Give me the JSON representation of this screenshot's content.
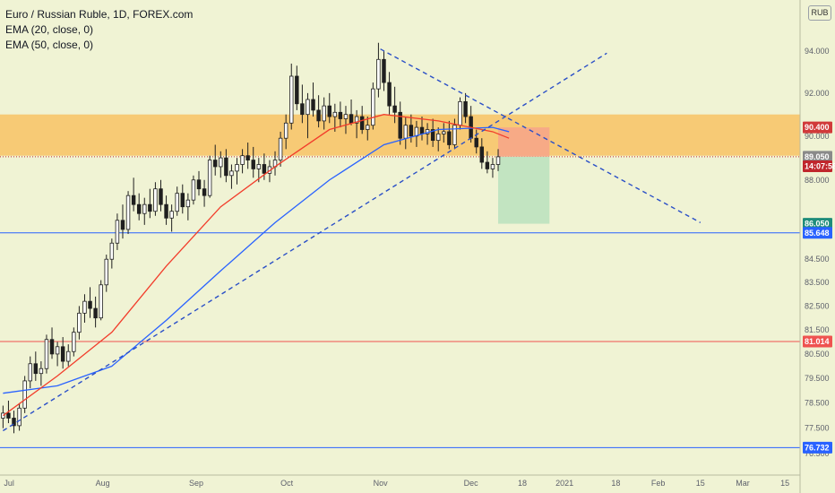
{
  "legend": {
    "title": "Euro / Russian Ruble, 1D, FOREX.com",
    "ema20": "EMA (20, close, 0)",
    "ema50": "EMA (50, close, 0)"
  },
  "unit": "RUB",
  "colors": {
    "background": "#f0f3d4",
    "candle_body": "#1f1f1f",
    "ema20": "#f23d2b",
    "ema50": "#2962ff",
    "zone": "#f7c56a",
    "trendline": "#2a4fc7",
    "stop_box": "#f7a58a",
    "target_box": "#bfe3c0",
    "hline_blue": "#2962ff",
    "hline_red": "#ef5350"
  },
  "chart_data": {
    "type": "candlestick",
    "symbol": "Euro / Russian Ruble, 1D, FOREX.com",
    "y_unit": "RUB",
    "y_ticks": [
      "94.000",
      "92.000",
      "90.000",
      "88.000",
      "85.648",
      "84.500",
      "83.500",
      "82.500",
      "81.500",
      "80.500",
      "79.500",
      "78.500",
      "77.500",
      "76.500"
    ],
    "y_tick_values": [
      94.0,
      92.0,
      90.0,
      88.0,
      85.648,
      84.5,
      83.5,
      82.5,
      81.5,
      80.5,
      79.5,
      78.5,
      77.5,
      76.5
    ],
    "x_ticks": [
      "Jul",
      "Aug",
      "Sep",
      "Oct",
      "Nov",
      "Dec",
      "18",
      "2021",
      "18",
      "Feb",
      "15",
      "Mar",
      "15"
    ],
    "x_range": [
      "2020-06-28",
      "2021-03-20"
    ],
    "y_range": [
      76.0,
      96.0
    ],
    "scale": "log",
    "ohlc_dates_range": [
      "2020-06-29",
      "2020-12-10"
    ],
    "ohlc": [
      [
        77.9,
        78.4,
        77.5,
        78.1
      ],
      [
        78.1,
        78.6,
        77.7,
        77.9
      ],
      [
        77.9,
        78.2,
        77.3,
        77.6
      ],
      [
        77.6,
        78.5,
        77.4,
        78.3
      ],
      [
        78.3,
        79.6,
        78.1,
        79.4
      ],
      [
        79.4,
        80.4,
        79.1,
        80.1
      ],
      [
        80.1,
        80.6,
        79.4,
        79.7
      ],
      [
        79.7,
        80.2,
        79.2,
        79.9
      ],
      [
        79.9,
        81.3,
        79.7,
        81.1
      ],
      [
        81.1,
        81.6,
        80.3,
        80.5
      ],
      [
        80.5,
        81.0,
        80.0,
        80.8
      ],
      [
        80.8,
        81.2,
        79.9,
        80.2
      ],
      [
        80.2,
        80.9,
        80.0,
        80.6
      ],
      [
        80.6,
        81.6,
        80.4,
        81.4
      ],
      [
        81.4,
        82.5,
        81.1,
        82.2
      ],
      [
        82.2,
        83.0,
        81.8,
        82.7
      ],
      [
        82.7,
        83.3,
        82.0,
        82.4
      ],
      [
        82.4,
        82.9,
        81.6,
        82.0
      ],
      [
        82.0,
        83.6,
        81.9,
        83.4
      ],
      [
        83.4,
        84.7,
        83.1,
        84.5
      ],
      [
        84.5,
        85.4,
        84.1,
        85.2
      ],
      [
        85.2,
        86.5,
        84.9,
        86.2
      ],
      [
        86.2,
        86.9,
        85.4,
        85.8
      ],
      [
        85.8,
        87.5,
        85.6,
        87.3
      ],
      [
        87.3,
        88.1,
        86.6,
        86.9
      ],
      [
        86.9,
        87.4,
        86.2,
        86.5
      ],
      [
        86.5,
        87.2,
        86.0,
        86.9
      ],
      [
        86.9,
        87.6,
        86.3,
        86.6
      ],
      [
        86.6,
        87.9,
        86.4,
        87.6
      ],
      [
        87.6,
        88.0,
        86.6,
        86.9
      ],
      [
        86.9,
        87.3,
        86.0,
        86.3
      ],
      [
        86.3,
        86.9,
        85.7,
        86.6
      ],
      [
        86.6,
        87.7,
        86.4,
        87.4
      ],
      [
        87.4,
        87.8,
        86.5,
        86.8
      ],
      [
        86.8,
        87.4,
        86.2,
        87.1
      ],
      [
        87.1,
        88.2,
        86.9,
        88.0
      ],
      [
        88.0,
        88.4,
        87.3,
        87.6
      ],
      [
        87.6,
        88.0,
        86.8,
        87.3
      ],
      [
        87.3,
        89.1,
        87.2,
        88.9
      ],
      [
        88.9,
        89.6,
        88.2,
        88.6
      ],
      [
        88.6,
        89.3,
        88.1,
        89.0
      ],
      [
        89.0,
        89.4,
        87.9,
        88.2
      ],
      [
        88.2,
        88.7,
        87.6,
        88.4
      ],
      [
        88.4,
        89.0,
        87.8,
        88.7
      ],
      [
        88.7,
        89.4,
        88.3,
        89.1
      ],
      [
        89.1,
        89.7,
        88.5,
        88.9
      ],
      [
        88.9,
        89.5,
        88.1,
        88.5
      ],
      [
        88.5,
        89.0,
        87.9,
        88.7
      ],
      [
        88.7,
        89.2,
        88.0,
        88.3
      ],
      [
        88.3,
        88.9,
        87.9,
        88.6
      ],
      [
        88.6,
        89.3,
        88.2,
        88.9
      ],
      [
        88.9,
        90.2,
        88.6,
        89.9
      ],
      [
        89.9,
        91.0,
        89.4,
        90.6
      ],
      [
        90.6,
        93.4,
        90.3,
        92.8
      ],
      [
        92.8,
        93.3,
        91.2,
        91.5
      ],
      [
        91.5,
        92.4,
        90.6,
        91.0
      ],
      [
        91.0,
        92.0,
        89.9,
        91.7
      ],
      [
        91.7,
        92.5,
        90.9,
        91.2
      ],
      [
        91.2,
        91.9,
        90.4,
        90.7
      ],
      [
        90.7,
        91.8,
        90.3,
        91.4
      ],
      [
        91.4,
        92.0,
        90.6,
        90.9
      ],
      [
        90.9,
        91.5,
        90.2,
        91.1
      ],
      [
        91.1,
        91.6,
        90.4,
        90.8
      ],
      [
        90.8,
        91.4,
        90.1,
        91.0
      ],
      [
        91.0,
        91.7,
        90.5,
        90.6
      ],
      [
        90.6,
        91.2,
        89.9,
        90.9
      ],
      [
        90.9,
        91.4,
        90.1,
        90.3
      ],
      [
        90.3,
        90.9,
        89.8,
        90.5
      ],
      [
        90.5,
        92.5,
        90.3,
        92.2
      ],
      [
        92.2,
        94.4,
        91.8,
        93.6
      ],
      [
        93.6,
        94.0,
        92.1,
        92.5
      ],
      [
        92.5,
        93.0,
        91.0,
        91.4
      ],
      [
        91.4,
        92.3,
        90.6,
        91.1
      ],
      [
        91.1,
        91.6,
        89.6,
        89.9
      ],
      [
        89.9,
        90.9,
        89.4,
        90.5
      ],
      [
        90.5,
        91.0,
        89.7,
        90.0
      ],
      [
        90.0,
        90.7,
        89.5,
        90.4
      ],
      [
        90.4,
        90.9,
        89.8,
        90.1
      ],
      [
        90.1,
        90.6,
        89.6,
        90.3
      ],
      [
        90.3,
        90.8,
        89.5,
        89.8
      ],
      [
        89.8,
        90.4,
        89.3,
        90.1
      ],
      [
        90.1,
        90.6,
        89.7,
        90.2
      ],
      [
        90.2,
        90.7,
        89.4,
        89.6
      ],
      [
        89.6,
        90.8,
        89.4,
        90.5
      ],
      [
        90.5,
        91.8,
        90.3,
        91.6
      ],
      [
        91.6,
        92.0,
        90.6,
        90.9
      ],
      [
        90.9,
        91.4,
        89.7,
        89.9
      ],
      [
        89.9,
        90.3,
        89.2,
        89.5
      ],
      [
        89.5,
        89.9,
        88.5,
        88.8
      ],
      [
        88.8,
        89.3,
        88.3,
        88.5
      ],
      [
        88.5,
        89.0,
        88.1,
        88.7
      ],
      [
        88.7,
        89.4,
        88.4,
        89.05
      ]
    ],
    "ema20": {
      "name": "EMA (20, close, 0)",
      "points": [
        [
          0,
          78.0
        ],
        [
          10,
          79.6
        ],
        [
          20,
          81.4
        ],
        [
          30,
          84.2
        ],
        [
          40,
          86.8
        ],
        [
          50,
          88.6
        ],
        [
          60,
          90.3
        ],
        [
          70,
          91.0
        ],
        [
          80,
          90.7
        ],
        [
          90,
          90.2
        ],
        [
          93,
          89.9
        ]
      ]
    },
    "ema50": {
      "name": "EMA (50, close, 0)",
      "points": [
        [
          0,
          78.9
        ],
        [
          10,
          79.2
        ],
        [
          20,
          80.0
        ],
        [
          30,
          81.9
        ],
        [
          40,
          84.0
        ],
        [
          50,
          86.1
        ],
        [
          60,
          88.0
        ],
        [
          70,
          89.6
        ],
        [
          80,
          90.3
        ],
        [
          90,
          90.4
        ],
        [
          93,
          90.2
        ]
      ]
    },
    "zone": {
      "low": 89.1,
      "high": 91.0
    },
    "horizontal_lines": [
      {
        "value": 85.648,
        "color": "#2962ff",
        "label": "85.648"
      },
      {
        "value": 81.014,
        "color": "#ef5350",
        "label": "81.014"
      },
      {
        "value": 76.732,
        "color": "#2962ff",
        "label": "76.732"
      }
    ],
    "dotted_line": {
      "value": 89.05
    },
    "trendlines": [
      {
        "from": [
          "2020-06-29",
          77.4
        ],
        "to": [
          "2021-01-15",
          93.9
        ]
      },
      {
        "from": [
          "2020-11-01",
          94.1
        ],
        "to": [
          "2021-02-15",
          86.1
        ]
      }
    ],
    "position": {
      "entry": 89.05,
      "stop": 90.4,
      "target": 86.05,
      "from": "2020-12-10",
      "to": "2020-12-27"
    },
    "price_badges": [
      {
        "label": "90.400",
        "value": 90.4,
        "color": "#d13a3a"
      },
      {
        "label": "89.050",
        "value": 89.05,
        "color": "#8a8a8a"
      },
      {
        "label": "14:07:58",
        "value": 88.62,
        "color": "#c0272d"
      },
      {
        "label": "86.050",
        "value": 86.05,
        "color": "#1e8c7a"
      },
      {
        "label": "85.648",
        "value": 85.648,
        "color": "#2962ff"
      },
      {
        "label": "81.014",
        "value": 81.014,
        "color": "#ef5350"
      },
      {
        "label": "76.732",
        "value": 76.732,
        "color": "#2962ff"
      }
    ]
  }
}
